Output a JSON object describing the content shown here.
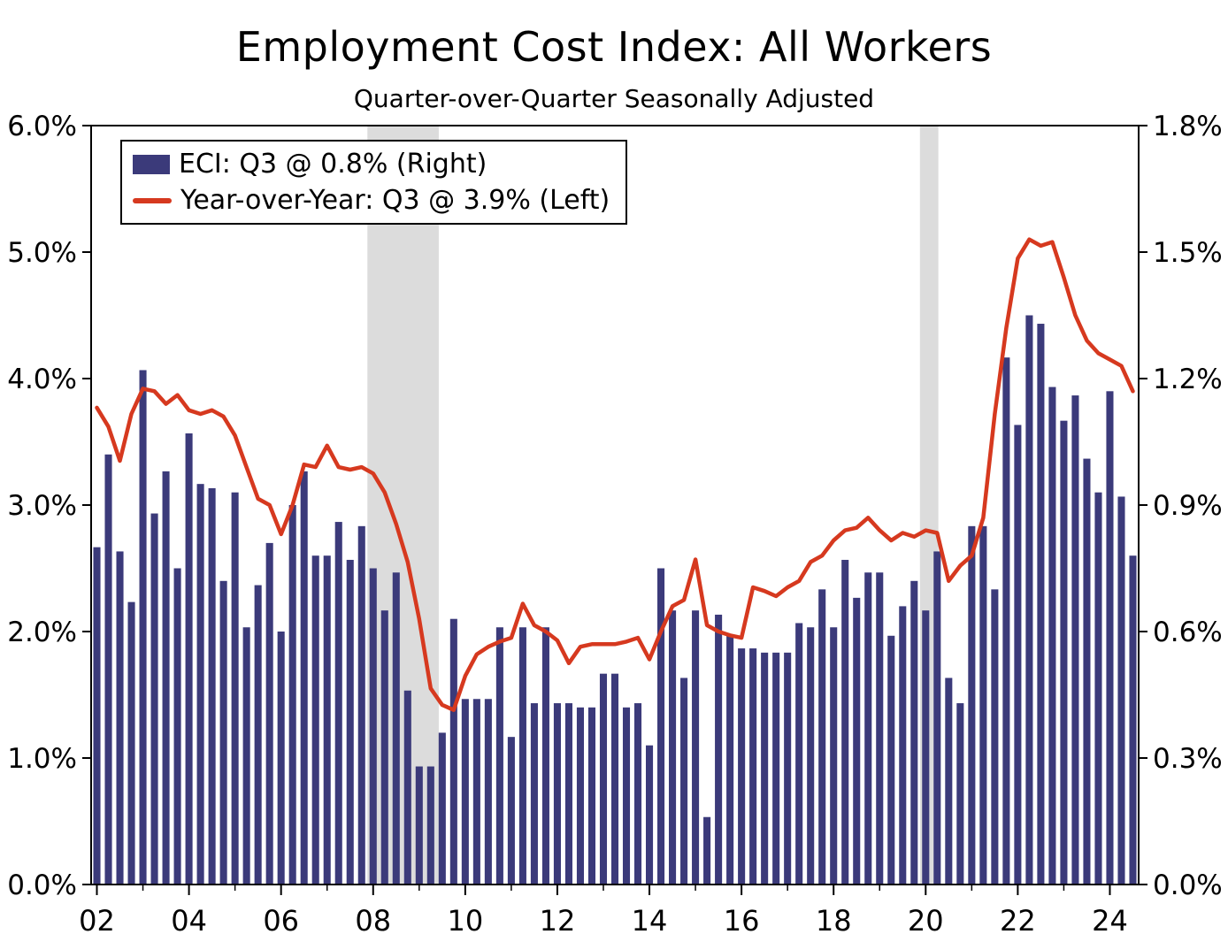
{
  "title": "Employment Cost Index: All Workers",
  "subtitle": "Quarter-over-Quarter Seasonally Adjusted",
  "legend": {
    "bar_label": "ECI: Q3 @ 0.8% (Right)",
    "line_label": "Year-over-Year: Q3 @ 3.9% (Left)"
  },
  "colors": {
    "bar": "#3b3a7a",
    "line": "#d6391f",
    "recession": "#dcdcdc",
    "axis": "#000000"
  },
  "chart_data": {
    "type": "bar",
    "x_start": "2002 Q1",
    "x_end": "2024 Q3",
    "quarters_count": 91,
    "series": [
      {
        "name": "ECI quarter-over-quarter (bars, right axis, %)",
        "type": "bar",
        "axis": "right",
        "values": [
          0.8,
          1.02,
          0.79,
          0.67,
          1.22,
          0.88,
          0.98,
          0.75,
          1.07,
          0.95,
          0.94,
          0.72,
          0.93,
          0.61,
          0.71,
          0.81,
          0.6,
          0.9,
          0.98,
          0.78,
          0.78,
          0.86,
          0.77,
          0.85,
          0.75,
          0.65,
          0.74,
          0.46,
          0.28,
          0.28,
          0.36,
          0.63,
          0.44,
          0.44,
          0.44,
          0.61,
          0.35,
          0.61,
          0.43,
          0.61,
          0.43,
          0.43,
          0.42,
          0.42,
          0.5,
          0.5,
          0.42,
          0.43,
          0.33,
          0.75,
          0.65,
          0.49,
          0.65,
          0.16,
          0.64,
          0.59,
          0.56,
          0.56,
          0.55,
          0.55,
          0.55,
          0.62,
          0.61,
          0.7,
          0.61,
          0.77,
          0.68,
          0.74,
          0.74,
          0.59,
          0.66,
          0.72,
          0.65,
          0.79,
          0.49,
          0.43,
          0.85,
          0.85,
          0.7,
          1.25,
          1.09,
          1.35,
          1.33,
          1.18,
          1.1,
          1.16,
          1.01,
          0.93,
          1.17,
          0.92,
          0.78
        ]
      },
      {
        "name": "Year-over-Year (line, left axis, %)",
        "type": "line",
        "axis": "left",
        "values": [
          3.77,
          3.62,
          3.35,
          3.72,
          3.92,
          3.9,
          3.8,
          3.87,
          3.75,
          3.72,
          3.75,
          3.7,
          3.55,
          3.3,
          3.05,
          3.0,
          2.77,
          3.0,
          3.32,
          3.3,
          3.47,
          3.3,
          3.28,
          3.3,
          3.25,
          3.1,
          2.85,
          2.55,
          2.1,
          1.55,
          1.42,
          1.38,
          1.65,
          1.82,
          1.88,
          1.92,
          1.95,
          2.22,
          2.05,
          2.0,
          1.93,
          1.75,
          1.88,
          1.9,
          1.9,
          1.9,
          1.92,
          1.95,
          1.78,
          2.0,
          2.2,
          2.25,
          2.57,
          2.05,
          2.0,
          1.97,
          1.95,
          2.35,
          2.32,
          2.28,
          2.35,
          2.4,
          2.55,
          2.6,
          2.72,
          2.8,
          2.82,
          2.9,
          2.8,
          2.72,
          2.78,
          2.75,
          2.8,
          2.78,
          2.4,
          2.52,
          2.6,
          2.9,
          3.72,
          4.4,
          4.95,
          5.1,
          5.05,
          5.08,
          4.8,
          4.5,
          4.3,
          4.2,
          4.15,
          4.1,
          3.9
        ]
      }
    ],
    "left_axis": {
      "min": 0,
      "max": 6,
      "step": 1,
      "tick_labels": [
        "0.0%",
        "1.0%",
        "2.0%",
        "3.0%",
        "4.0%",
        "5.0%",
        "6.0%"
      ]
    },
    "right_axis": {
      "min": 0,
      "max": 1.8,
      "step": 0.3,
      "tick_labels": [
        "0.0%",
        "0.3%",
        "0.6%",
        "0.9%",
        "1.2%",
        "1.5%",
        "1.8%"
      ]
    },
    "x_axis": {
      "tick_years": [
        2002,
        2004,
        2006,
        2008,
        2010,
        2012,
        2014,
        2016,
        2018,
        2020,
        2022,
        2024
      ],
      "tick_labels": [
        "02",
        "04",
        "06",
        "08",
        "10",
        "12",
        "14",
        "16",
        "18",
        "20",
        "22",
        "24"
      ],
      "minor_tick_years": [
        2003,
        2005,
        2007,
        2009,
        2011,
        2013,
        2015,
        2017,
        2019,
        2021,
        2023
      ]
    },
    "recession_bands": [
      {
        "start_year": 2008.0,
        "end_year": 2009.55
      },
      {
        "start_year": 2020.0,
        "end_year": 2020.4
      }
    ],
    "grid": false,
    "legend_position": "top-left"
  }
}
